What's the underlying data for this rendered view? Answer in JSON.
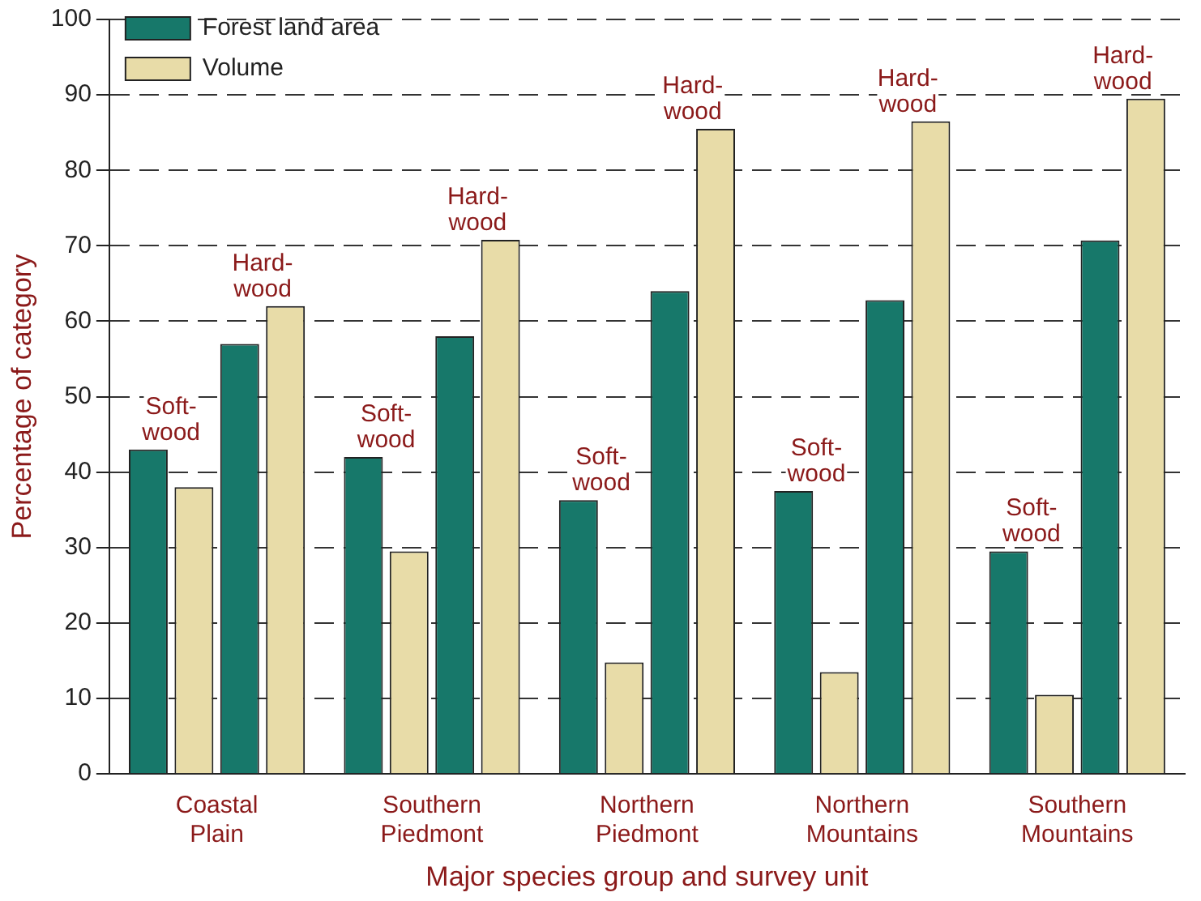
{
  "chart_data": {
    "type": "bar",
    "xlabel": "Major species group and survey unit",
    "ylabel": "Percentage of category",
    "categories": [
      "Coastal Plain",
      "Southern Piedmont",
      "Northern Piedmont",
      "Northern Mountains",
      "Southern Mountains"
    ],
    "series": [
      {
        "name": "Forest land area",
        "color": "#17786a",
        "values": [
          43,
          42,
          36.3,
          37.5,
          29.5
        ]
      },
      {
        "name": "Volume",
        "color": "#e8dca8",
        "values": [
          38,
          29.5,
          14.8,
          13.5,
          10.5
        ]
      },
      {
        "color": "#17786a",
        "values": [
          57,
          58,
          64,
          62.8,
          70.7
        ]
      },
      {
        "color": "#e8dca8",
        "values": [
          62,
          70.8,
          85.5,
          86.5,
          89.5
        ]
      }
    ],
    "ylim": [
      0,
      100
    ],
    "yticks": [
      0,
      10,
      20,
      30,
      40,
      50,
      60,
      70,
      80,
      90,
      100
    ],
    "grid": "y",
    "legend": "top left",
    "annotations": [
      "Soft-\nwood",
      "Hard-\nwood",
      "Soft-\nwood",
      "Hard-\nwood",
      "Soft-\nwood",
      "Hard-\nwood",
      "Soft-\nwood",
      "Hard-\nwood",
      "Soft-\nwood",
      "Hard-\nwood"
    ]
  }
}
